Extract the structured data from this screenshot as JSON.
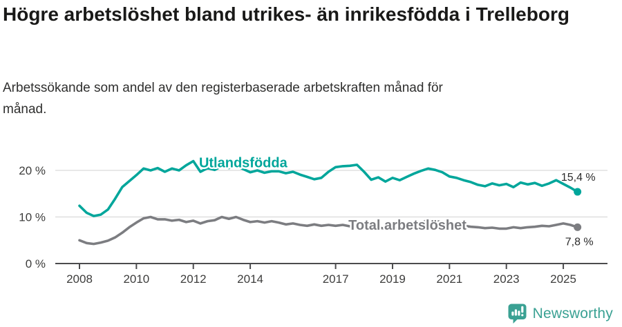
{
  "header": {
    "title": "Högre arbetslöshet bland utrikes- än inrikesfödda i Trelleborg",
    "subtitle": "Arbetssökande som andel av den registerbaserade arbetskraften månad för månad."
  },
  "chart_data": {
    "type": "line",
    "unit": "%",
    "x_start": 2008.0,
    "x_step": 0.25,
    "x_end": 2025.5,
    "grid": "horizontal",
    "ylim": [
      0,
      23
    ],
    "x_ticks": [
      2008,
      2010,
      2012,
      2014,
      2017,
      2019,
      2021,
      2023,
      2025
    ],
    "y_ticks": [
      {
        "value": 0,
        "label": "0 %"
      },
      {
        "value": 10,
        "label": "10 %"
      },
      {
        "value": 20,
        "label": "20 %"
      }
    ],
    "series": [
      {
        "id": "utlandsfodda",
        "name": "Utlandsfödda",
        "color": "#00a69b",
        "end_label": "15,4 %",
        "label_anchor": {
          "x": 2012.2,
          "v": 20.7
        },
        "values": [
          12.4,
          10.9,
          10.2,
          10.5,
          11.6,
          13.9,
          16.4,
          17.7,
          19.0,
          20.4,
          20.0,
          20.5,
          19.7,
          20.4,
          20.0,
          21.1,
          22.0,
          19.7,
          20.5,
          20.1,
          20.9,
          20.5,
          21.0,
          20.3,
          19.6,
          20.0,
          19.5,
          19.8,
          19.8,
          19.4,
          19.7,
          19.1,
          18.6,
          18.1,
          18.4,
          19.7,
          20.7,
          20.9,
          21.0,
          21.2,
          19.7,
          18.0,
          18.5,
          17.6,
          18.4,
          17.9,
          18.6,
          19.3,
          19.9,
          20.4,
          20.1,
          19.6,
          18.7,
          18.4,
          17.9,
          17.5,
          16.9,
          16.6,
          17.2,
          16.8,
          17.1,
          16.4,
          17.4,
          17.0,
          17.3,
          16.7,
          17.2,
          17.9,
          17.1,
          16.3,
          15.4
        ]
      },
      {
        "id": "total-arbetsloshet",
        "name": "Total arbetslöshet",
        "color": "#7c7d81",
        "end_label": "7,8 %",
        "label_anchor": {
          "x": 2017.45,
          "v": 7.26
        },
        "values": [
          5.0,
          4.4,
          4.2,
          4.5,
          4.9,
          5.6,
          6.6,
          7.8,
          8.8,
          9.7,
          10.0,
          9.5,
          9.5,
          9.2,
          9.4,
          8.9,
          9.2,
          8.6,
          9.1,
          9.3,
          10.0,
          9.6,
          10.0,
          9.4,
          8.9,
          9.1,
          8.8,
          9.1,
          8.8,
          8.4,
          8.6,
          8.3,
          8.1,
          8.4,
          8.1,
          8.3,
          8.1,
          8.3,
          8.0,
          7.8,
          7.7,
          7.5,
          7.7,
          7.5,
          7.7,
          7.5,
          7.8,
          8.0,
          8.7,
          9.4,
          9.2,
          8.8,
          8.6,
          8.3,
          8.1,
          7.9,
          7.8,
          7.6,
          7.7,
          7.5,
          7.5,
          7.8,
          7.6,
          7.8,
          7.9,
          8.1,
          8.0,
          8.3,
          8.6,
          8.3,
          7.8
        ]
      }
    ]
  },
  "footer": {
    "brand": "Newsworthy",
    "brand_color": "#3aa193"
  }
}
